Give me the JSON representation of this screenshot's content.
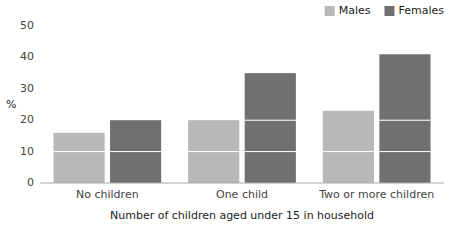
{
  "chart_data": {
    "type": "bar",
    "stacked": true,
    "categories": [
      "No children",
      "One child",
      "Two or more children"
    ],
    "series": [
      {
        "name": "Males",
        "color": "#b8b8b8",
        "values": [
          [
            10,
            6
          ],
          [
            10,
            10
          ],
          [
            10,
            13
          ]
        ]
      },
      {
        "name": "Females",
        "color": "#707070",
        "values": [
          [
            10,
            10
          ],
          [
            10,
            10,
            15
          ],
          [
            10,
            10,
            21
          ]
        ]
      }
    ],
    "ylim": [
      0,
      50
    ],
    "yticks": [
      0,
      10,
      20,
      30,
      40,
      50
    ],
    "ylabel": "%",
    "xlabel": "Number of children aged under 15 in household",
    "grid": false,
    "legend": "upper right"
  }
}
